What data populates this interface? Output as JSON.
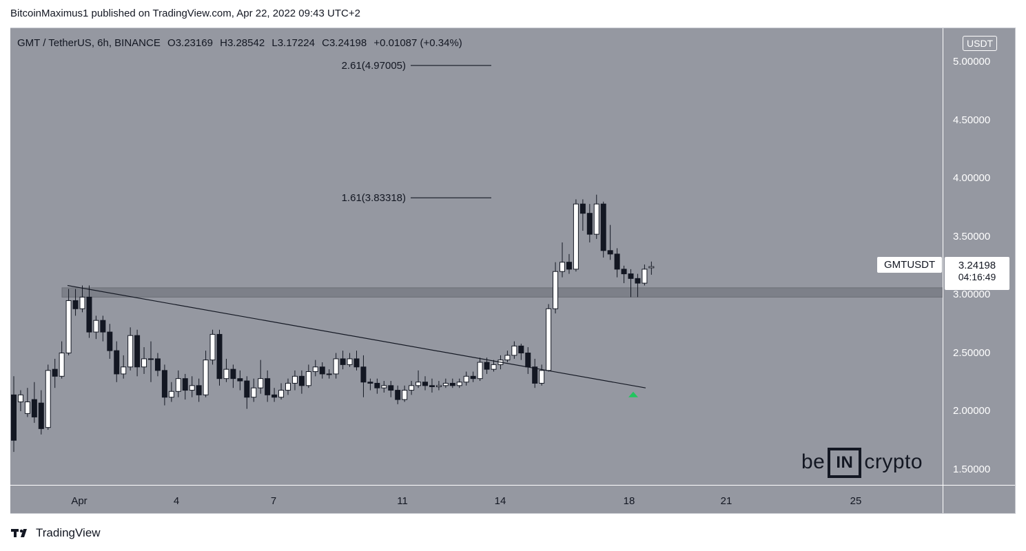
{
  "attribution": "BitcoinMaximus1 published on TradingView.com, Apr 22, 2022 09:43 UTC+2",
  "legend": {
    "symbol": "GMT / TetherUS, 6h, BINANCE",
    "open_label": "O",
    "open": "3.23169",
    "high_label": "H",
    "high": "3.28542",
    "low_label": "L",
    "low": "3.17224",
    "close_label": "C",
    "close": "3.24198",
    "change": "+0.01087 (+0.34%)"
  },
  "currency_badge": "USDT",
  "symbol_label": "GMTUSDT",
  "last_price": "3.24198",
  "countdown": "04:16:49",
  "watermark": {
    "left": "be",
    "box": "IN",
    "right": "crypto"
  },
  "footer_brand": "TradingView",
  "colors": {
    "plot_bg": "#9598a1",
    "up": "#ffffff",
    "down": "#131722",
    "marker": "#22c55e"
  },
  "chart_data": {
    "type": "candlestick",
    "timeframe": "6h",
    "ylim": [
      1.4,
      5.3
    ],
    "y_ticks": [
      "5.00000",
      "4.50000",
      "4.00000",
      "3.50000",
      "3.00000",
      "2.50000",
      "2.00000",
      "1.50000"
    ],
    "x_tick_labels": [
      "Apr",
      "4",
      "7",
      "11",
      "14",
      "18",
      "21",
      "25"
    ],
    "fib_levels": [
      {
        "label": "2.61(4.97005)",
        "value": 4.97005
      },
      {
        "label": "1.61(3.83318)",
        "value": 3.83318
      }
    ],
    "support_zone": [
      2.98,
      3.06
    ],
    "descending_trendline": [
      {
        "date": "Apr 2",
        "value": 3.08
      },
      {
        "date": "Apr 18",
        "value": 2.2
      }
    ],
    "breakout_marker": {
      "date": "Apr 18",
      "value": 2.12
    },
    "candles": [
      [
        2.14,
        1.75,
        2.3,
        1.65
      ],
      [
        2.08,
        2.14,
        2.18,
        2.0
      ],
      [
        1.98,
        2.08,
        2.2,
        1.95
      ],
      [
        2.1,
        1.95,
        2.25,
        1.9
      ],
      [
        2.07,
        1.85,
        2.18,
        1.8
      ],
      [
        1.86,
        2.35,
        2.4,
        1.84
      ],
      [
        2.36,
        2.3,
        2.45,
        2.2
      ],
      [
        2.3,
        2.5,
        2.6,
        2.28
      ],
      [
        2.5,
        2.95,
        3.05,
        2.48
      ],
      [
        2.95,
        2.88,
        3.05,
        2.82
      ],
      [
        2.88,
        2.98,
        3.08,
        2.85
      ],
      [
        2.98,
        2.68,
        3.08,
        2.63
      ],
      [
        2.68,
        2.78,
        2.82,
        2.62
      ],
      [
        2.78,
        2.68,
        2.82,
        2.6
      ],
      [
        2.68,
        2.52,
        2.75,
        2.45
      ],
      [
        2.52,
        2.32,
        2.6,
        2.25
      ],
      [
        2.32,
        2.38,
        2.48,
        2.28
      ],
      [
        2.38,
        2.65,
        2.72,
        2.35
      ],
      [
        2.65,
        2.38,
        2.7,
        2.3
      ],
      [
        2.38,
        2.45,
        2.55,
        2.32
      ],
      [
        2.45,
        2.45,
        2.6,
        2.25
      ],
      [
        2.45,
        2.35,
        2.5,
        2.3
      ],
      [
        2.35,
        2.12,
        2.4,
        2.05
      ],
      [
        2.12,
        2.17,
        2.25,
        2.08
      ],
      [
        2.17,
        2.28,
        2.35,
        2.12
      ],
      [
        2.28,
        2.18,
        2.32,
        2.1
      ],
      [
        2.18,
        2.22,
        2.3,
        2.12
      ],
      [
        2.22,
        2.14,
        2.28,
        2.08
      ],
      [
        2.14,
        2.44,
        2.52,
        2.12
      ],
      [
        2.44,
        2.66,
        2.7,
        2.4
      ],
      [
        2.66,
        2.28,
        2.7,
        2.22
      ],
      [
        2.28,
        2.36,
        2.45,
        2.25
      ],
      [
        2.36,
        2.28,
        2.4,
        2.2
      ],
      [
        2.28,
        2.26,
        2.35,
        2.18
      ],
      [
        2.26,
        2.12,
        2.3,
        2.02
      ],
      [
        2.12,
        2.2,
        2.28,
        2.08
      ],
      [
        2.2,
        2.28,
        2.44,
        2.15
      ],
      [
        2.28,
        2.14,
        2.35,
        2.08
      ],
      [
        2.14,
        2.12,
        2.2,
        2.08
      ],
      [
        2.12,
        2.18,
        2.24,
        2.1
      ],
      [
        2.18,
        2.24,
        2.28,
        2.14
      ],
      [
        2.24,
        2.3,
        2.35,
        2.18
      ],
      [
        2.3,
        2.22,
        2.35,
        2.15
      ],
      [
        2.22,
        2.34,
        2.4,
        2.2
      ],
      [
        2.34,
        2.38,
        2.44,
        2.3
      ],
      [
        2.38,
        2.32,
        2.42,
        2.28
      ],
      [
        2.32,
        2.32,
        2.36,
        2.28
      ],
      [
        2.32,
        2.45,
        2.5,
        2.28
      ],
      [
        2.45,
        2.4,
        2.52,
        2.36
      ],
      [
        2.4,
        2.45,
        2.5,
        2.38
      ],
      [
        2.45,
        2.38,
        2.52,
        2.35
      ],
      [
        2.38,
        2.25,
        2.48,
        2.12
      ],
      [
        2.25,
        2.24,
        2.28,
        2.18
      ],
      [
        2.24,
        2.2,
        2.28,
        2.15
      ],
      [
        2.2,
        2.22,
        2.26,
        2.16
      ],
      [
        2.22,
        2.18,
        2.26,
        2.12
      ],
      [
        2.18,
        2.1,
        2.22,
        2.06
      ],
      [
        2.1,
        2.18,
        2.22,
        2.08
      ],
      [
        2.18,
        2.22,
        2.26,
        2.14
      ],
      [
        2.22,
        2.25,
        2.35,
        2.2
      ],
      [
        2.25,
        2.22,
        2.3,
        2.18
      ],
      [
        2.22,
        2.21,
        2.28,
        2.16
      ],
      [
        2.21,
        2.22,
        2.26,
        2.18
      ],
      [
        2.22,
        2.24,
        2.28,
        2.2
      ],
      [
        2.24,
        2.22,
        2.28,
        2.2
      ],
      [
        2.22,
        2.25,
        2.28,
        2.2
      ],
      [
        2.25,
        2.3,
        2.34,
        2.22
      ],
      [
        2.3,
        2.28,
        2.34,
        2.25
      ],
      [
        2.28,
        2.42,
        2.46,
        2.26
      ],
      [
        2.42,
        2.36,
        2.46,
        2.32
      ],
      [
        2.36,
        2.4,
        2.44,
        2.34
      ],
      [
        2.4,
        2.44,
        2.48,
        2.36
      ],
      [
        2.44,
        2.48,
        2.52,
        2.42
      ],
      [
        2.48,
        2.56,
        2.6,
        2.45
      ],
      [
        2.56,
        2.5,
        2.58,
        2.44
      ],
      [
        2.5,
        2.38,
        2.55,
        2.32
      ],
      [
        2.38,
        2.24,
        2.45,
        2.2
      ],
      [
        2.24,
        2.35,
        2.4,
        2.22
      ],
      [
        2.35,
        2.88,
        2.92,
        2.34
      ],
      [
        2.88,
        3.2,
        3.28,
        2.84
      ],
      [
        3.2,
        3.28,
        3.45,
        3.15
      ],
      [
        3.28,
        3.22,
        3.35,
        3.18
      ],
      [
        3.22,
        3.78,
        3.82,
        3.2
      ],
      [
        3.78,
        3.7,
        3.82,
        3.55
      ],
      [
        3.7,
        3.52,
        3.78,
        3.45
      ],
      [
        3.52,
        3.78,
        3.86,
        3.48
      ],
      [
        3.78,
        3.38,
        3.8,
        3.32
      ],
      [
        3.38,
        3.35,
        3.6,
        3.3
      ],
      [
        3.35,
        3.22,
        3.4,
        3.15
      ],
      [
        3.22,
        3.18,
        3.25,
        3.1
      ],
      [
        3.18,
        3.14,
        3.22,
        2.98
      ],
      [
        3.14,
        3.1,
        3.18,
        2.98
      ],
      [
        3.1,
        3.22,
        3.26,
        3.08
      ],
      [
        3.23169,
        3.24198,
        3.28542,
        3.17224
      ]
    ]
  }
}
